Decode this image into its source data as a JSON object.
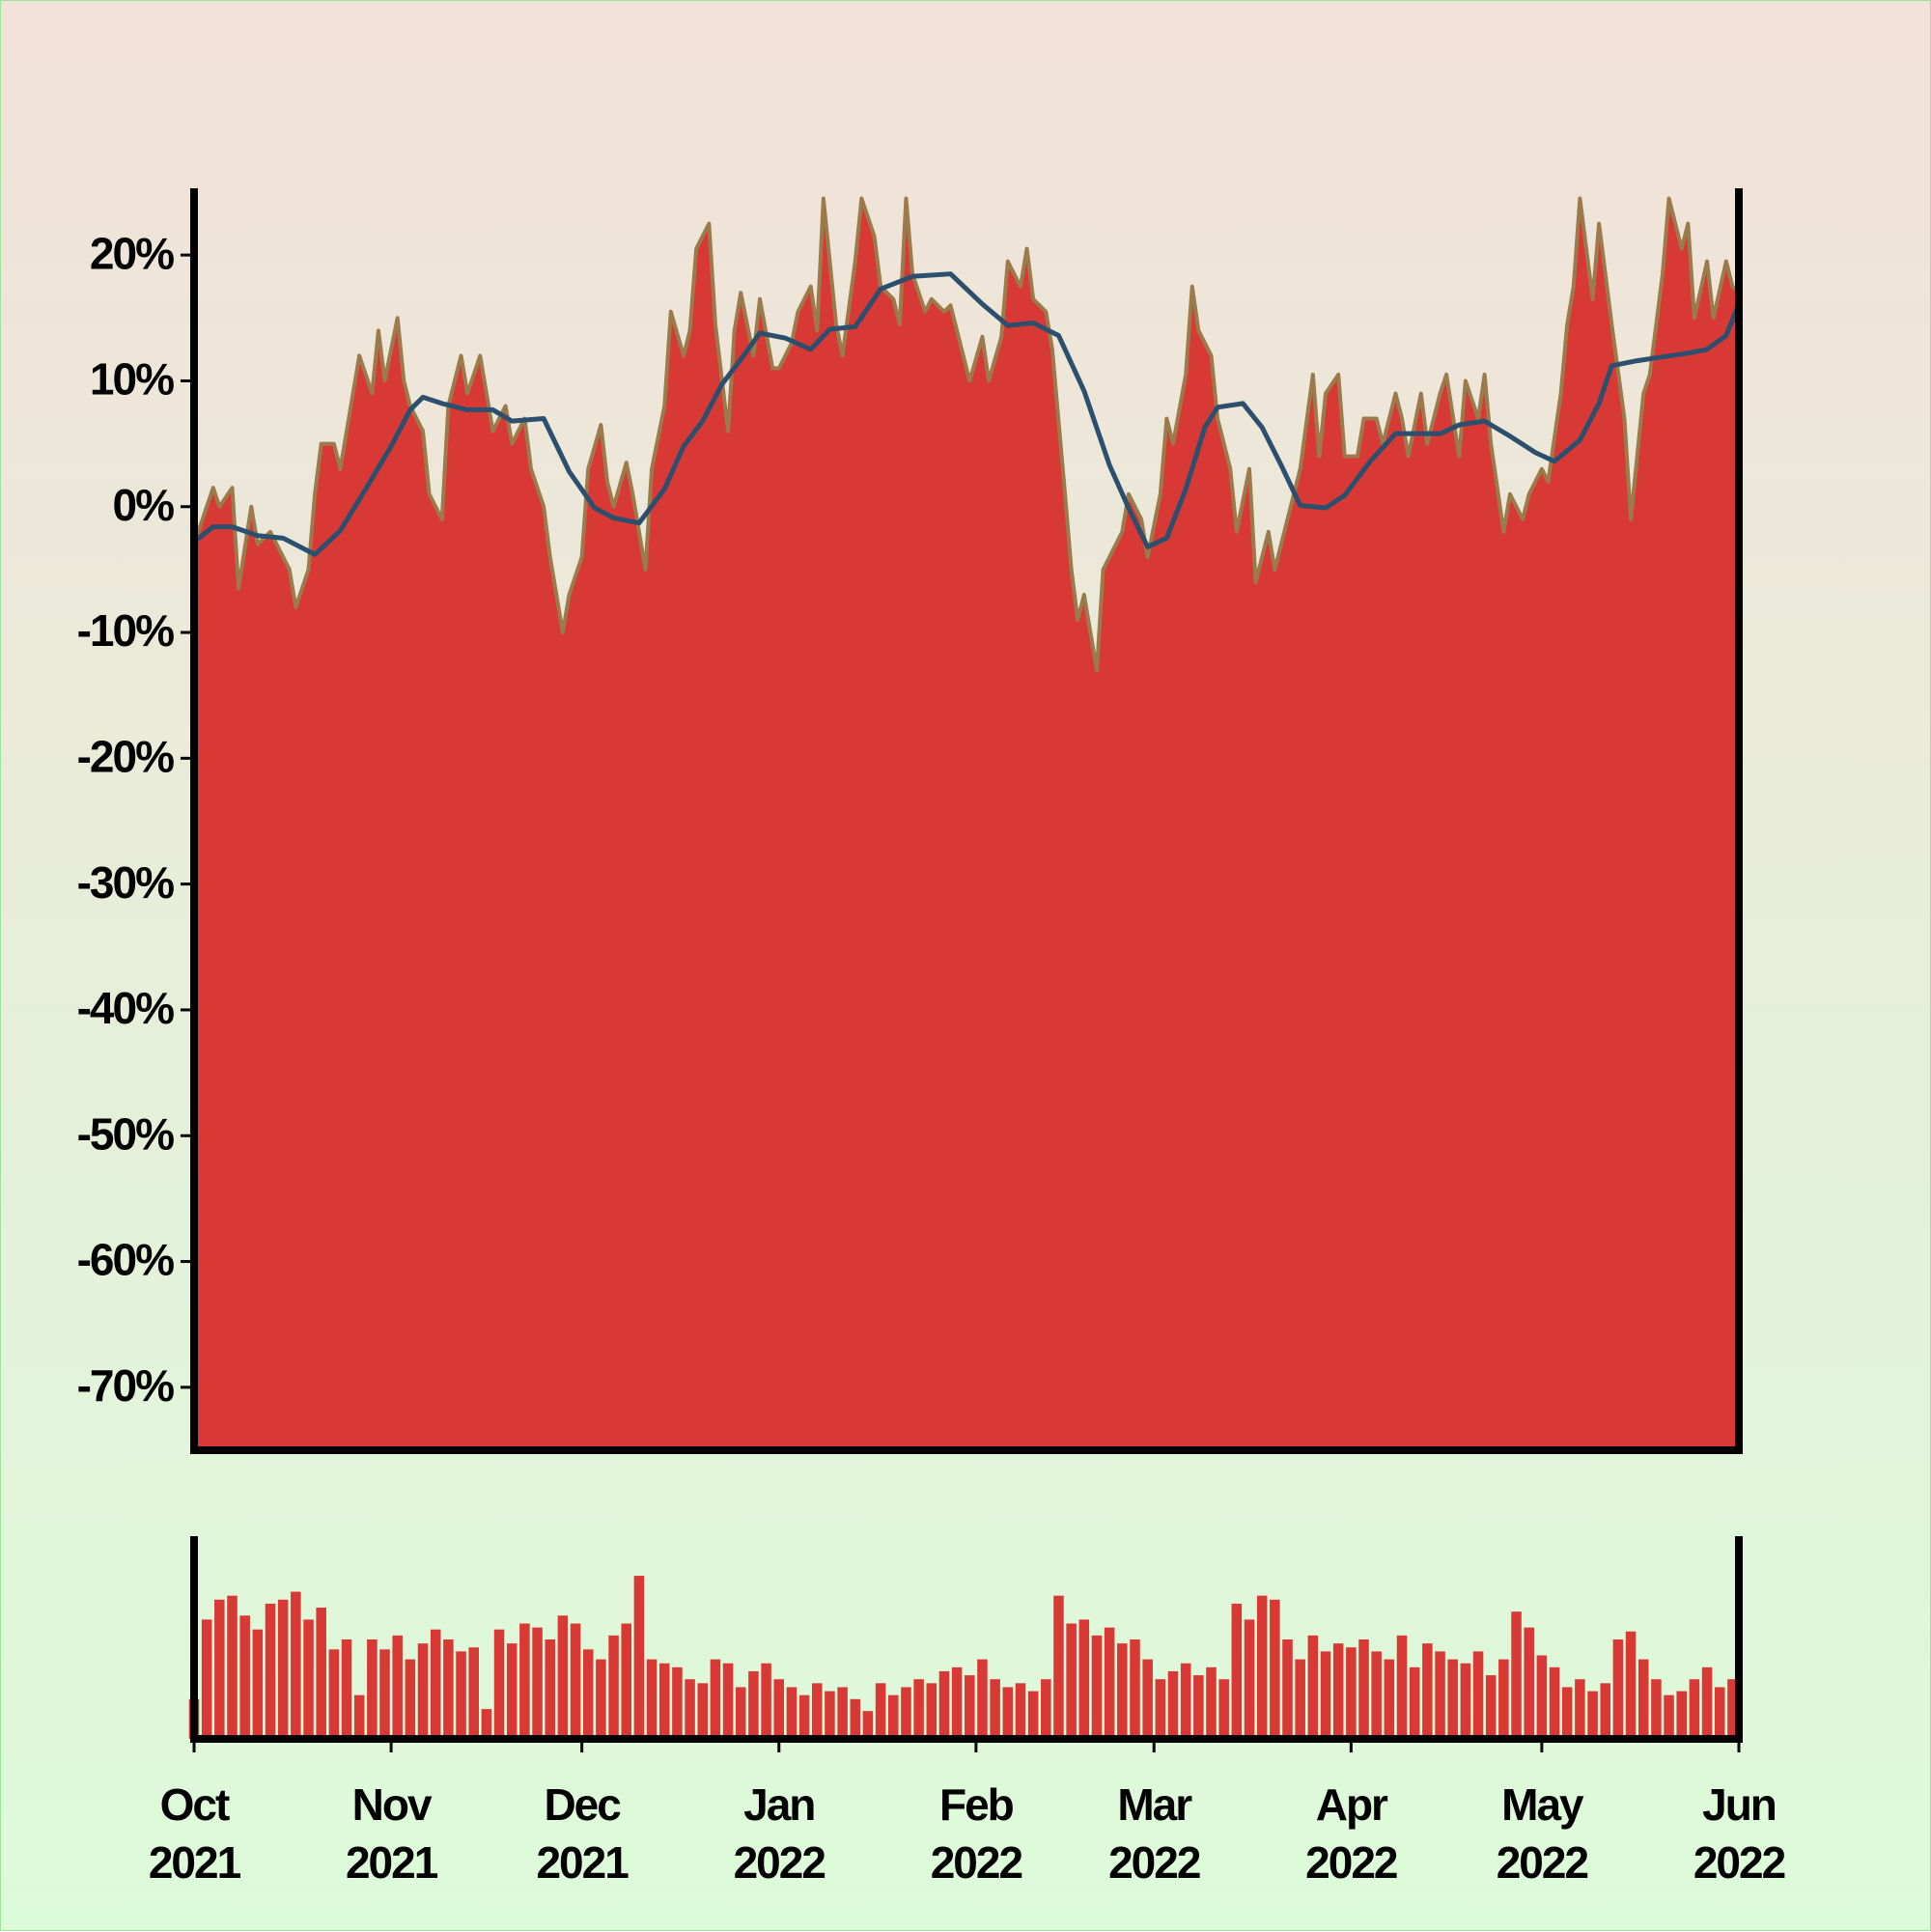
{
  "chart_data": [
    {
      "type": "area",
      "xlim": [
        0,
        243
      ],
      "ylim": [
        -75,
        25
      ],
      "yticks": [
        {
          "value": -70,
          "label": "-70%"
        },
        {
          "value": -60,
          "label": "-60%"
        },
        {
          "value": -50,
          "label": "-50%"
        },
        {
          "value": -40,
          "label": "-40%"
        },
        {
          "value": -30,
          "label": "-30%"
        },
        {
          "value": -20,
          "label": "-20%"
        },
        {
          "value": -10,
          "label": "-10%"
        },
        {
          "value": 0,
          "label": "0%"
        },
        {
          "value": 10,
          "label": "10%"
        },
        {
          "value": 20,
          "label": "20%"
        }
      ],
      "series": [
        {
          "type": "area",
          "color": "#d93935",
          "edgecolor": "#9b7b4b",
          "x": [
            0,
            2,
            3,
            4,
            6,
            7,
            9,
            10,
            12,
            13,
            15,
            16,
            18,
            19,
            20,
            22,
            23,
            25,
            26,
            28,
            29,
            30,
            32,
            33,
            34,
            36,
            37,
            39,
            40,
            42,
            43,
            45,
            46,
            47,
            49,
            50,
            52,
            53,
            55,
            56,
            58,
            59,
            61,
            62,
            64,
            65,
            66,
            68,
            69,
            71,
            72,
            74,
            75,
            77,
            78,
            79,
            81,
            82,
            84,
            85,
            86,
            88,
            89,
            91,
            92,
            94,
            95,
            97,
            98,
            99,
            101,
            102,
            104,
            105,
            107,
            108,
            110,
            111,
            112,
            113,
            115,
            116,
            118,
            119,
            121,
            122,
            124,
            125,
            127,
            128,
            130,
            131,
            132,
            134,
            135,
            137,
            138,
            139,
            140,
            142,
            143,
            144,
            146,
            147,
            149,
            150,
            152,
            153,
            154,
            156,
            157,
            158,
            160,
            161,
            163,
            164,
            166,
            167,
            169,
            170,
            171,
            173,
            174,
            176,
            177,
            178,
            180,
            181,
            183,
            184,
            186,
            187,
            189,
            190,
            191,
            193,
            194,
            196,
            197,
            199,
            200,
            202,
            203,
            204,
            206,
            207,
            209,
            210,
            212,
            213,
            215,
            216,
            217,
            218,
            220,
            221,
            222,
            223,
            225,
            226,
            228,
            229,
            231,
            232,
            234,
            235,
            236,
            238,
            239,
            241,
            242,
            243
          ],
          "values": [
            -3,
            0,
            1.5,
            0,
            1.5,
            -6.5,
            0,
            -3,
            -2,
            -3,
            -5,
            -8,
            -5,
            1,
            5,
            5,
            3,
            9,
            12,
            9,
            14,
            10,
            15,
            10,
            8,
            6,
            1,
            -1,
            8,
            12,
            9,
            12,
            9,
            6,
            8,
            5,
            7,
            3,
            0,
            -4,
            -10,
            -7,
            -4,
            3,
            6.5,
            2,
            0,
            3.5,
            1,
            -5,
            3,
            8,
            15.5,
            12,
            14,
            20.5,
            22.5,
            14.5,
            6,
            14,
            17,
            12,
            16.5,
            11,
            11,
            13,
            15.5,
            17.5,
            14,
            24.5,
            14.5,
            12,
            19.5,
            24.5,
            21.5,
            17.5,
            16.5,
            14.5,
            24.5,
            18.5,
            15.5,
            16.5,
            15.5,
            16,
            12,
            10,
            13.5,
            10,
            13.5,
            19.5,
            17.5,
            20.5,
            16.5,
            15.5,
            12.5,
            1,
            -5,
            -9,
            -7,
            -13,
            -5,
            -4,
            -2,
            1,
            -1,
            -4,
            1,
            7,
            5,
            10.5,
            17.5,
            14,
            12,
            7,
            3,
            -2,
            3,
            -6,
            -2,
            -5,
            -3,
            1,
            3,
            10.5,
            4,
            9,
            10.5,
            4,
            4,
            7,
            7,
            5,
            9,
            7,
            4,
            9,
            5,
            9,
            10.5,
            4,
            10,
            7,
            10.5,
            5,
            -2,
            1,
            -1,
            1,
            3,
            2,
            9,
            14.5,
            17.5,
            24.5,
            16.5,
            22.5,
            18.5,
            14.5,
            7,
            -1,
            9,
            10.5,
            18.5,
            24.5,
            20.5,
            22.5,
            15,
            19.5,
            15,
            19.5,
            17.5,
            17
          ]
        },
        {
          "type": "line",
          "color": "#2c4f6e",
          "x": [
            0,
            3,
            6,
            10,
            14,
            19,
            23,
            27,
            31,
            34,
            36,
            39,
            43,
            47,
            50,
            55,
            59,
            63,
            66,
            70,
            74,
            77,
            80,
            83,
            86,
            89,
            93,
            97,
            100,
            104,
            108,
            113,
            119,
            124,
            128,
            132,
            136,
            140,
            144,
            147,
            150,
            153,
            156,
            159,
            161,
            165,
            168,
            171,
            174,
            178,
            181,
            185,
            189,
            192,
            196,
            199,
            203,
            207,
            211,
            214,
            218,
            221,
            223,
            227,
            231,
            235,
            238,
            241,
            243
          ],
          "values": [
            -2.8,
            -1.6,
            -1.6,
            -2.3,
            -2.5,
            -3.8,
            -1.9,
            1.4,
            4.8,
            7.7,
            8.7,
            8.2,
            7.7,
            7.7,
            6.8,
            7.0,
            2.8,
            -0.1,
            -0.9,
            -1.3,
            1.4,
            4.8,
            6.8,
            9.7,
            11.7,
            13.8,
            13.4,
            12.5,
            14.1,
            14.3,
            17.3,
            18.3,
            18.5,
            16.1,
            14.4,
            14.6,
            13.6,
            9.2,
            3.3,
            -0.1,
            -3.2,
            -2.5,
            1.4,
            6.3,
            7.9,
            8.2,
            6.3,
            3.3,
            0.1,
            -0.1,
            0.9,
            3.6,
            5.8,
            5.8,
            5.8,
            6.5,
            6.8,
            5.6,
            4.3,
            3.6,
            5.3,
            8.2,
            11.2,
            11.6,
            11.9,
            12.2,
            12.5,
            13.6,
            16.1
          ]
        }
      ]
    },
    {
      "type": "bar",
      "xlim": [
        0,
        243
      ],
      "ylim": [
        0,
        100
      ],
      "color": "#d93935",
      "xticks": [
        {
          "value": 0,
          "label": "Oct 2021"
        },
        {
          "value": 31,
          "label": "Nov 2021"
        },
        {
          "value": 61,
          "label": "Dec 2021"
        },
        {
          "value": 92,
          "label": "Jan 2022"
        },
        {
          "value": 123,
          "label": "Feb 2022"
        },
        {
          "value": 151,
          "label": "Mar 2022"
        },
        {
          "value": 182,
          "label": "Apr 2022"
        },
        {
          "value": 212,
          "label": "May 2022"
        },
        {
          "value": 243,
          "label": "Jun 2022"
        }
      ],
      "x": [
        0,
        2,
        4,
        6,
        8,
        10,
        12,
        14,
        16,
        18,
        20,
        22,
        24,
        26,
        28,
        30,
        32,
        34,
        36,
        38,
        40,
        42,
        44,
        46,
        48,
        50,
        52,
        54,
        56,
        58,
        60,
        62,
        64,
        66,
        68,
        70,
        72,
        74,
        76,
        78,
        80,
        82,
        84,
        86,
        88,
        90,
        92,
        94,
        96,
        98,
        100,
        102,
        104,
        106,
        108,
        110,
        112,
        114,
        116,
        118,
        120,
        122,
        124,
        126,
        128,
        130,
        132,
        134,
        136,
        138,
        140,
        142,
        144,
        146,
        148,
        150,
        152,
        154,
        156,
        158,
        160,
        162,
        164,
        166,
        168,
        170,
        172,
        174,
        176,
        178,
        180,
        182,
        184,
        186,
        188,
        190,
        192,
        194,
        196,
        198,
        200,
        202,
        204,
        206,
        208,
        210,
        212,
        214,
        216,
        218,
        220,
        222,
        224,
        226,
        228,
        230,
        232,
        234,
        236,
        238,
        240,
        242
      ],
      "values": [
        20,
        60,
        70,
        72,
        62,
        55,
        68,
        70,
        74,
        60,
        66,
        45,
        50,
        22,
        50,
        45,
        52,
        40,
        48,
        55,
        50,
        44,
        46,
        15,
        55,
        48,
        58,
        56,
        50,
        62,
        58,
        45,
        40,
        52,
        58,
        82,
        40,
        38,
        36,
        30,
        28,
        40,
        38,
        26,
        34,
        38,
        30,
        26,
        22,
        28,
        24,
        26,
        20,
        14,
        28,
        22,
        26,
        30,
        28,
        34,
        36,
        32,
        40,
        30,
        26,
        28,
        24,
        30,
        72,
        58,
        60,
        52,
        56,
        48,
        50,
        40,
        30,
        34,
        38,
        32,
        36,
        30,
        68,
        60,
        72,
        70,
        50,
        40,
        52,
        44,
        48,
        46,
        50,
        44,
        40,
        52,
        36,
        48,
        44,
        40,
        38,
        44,
        32,
        40,
        64,
        56,
        42,
        36,
        26,
        30,
        24,
        28,
        50,
        54,
        40,
        30,
        22,
        24,
        30,
        36,
        26,
        30
      ]
    }
  ]
}
